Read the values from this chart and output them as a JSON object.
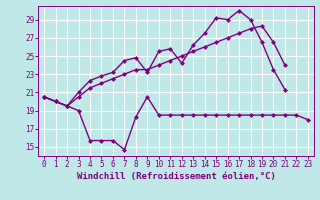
{
  "xlabel": "Windchill (Refroidissement éolien,°C)",
  "bg_color": "#c0e8e8",
  "grid_color": "#ffffff",
  "line_color": "#800080",
  "ylim": [
    14.0,
    30.5
  ],
  "xlim": [
    -0.5,
    23.5
  ],
  "yticks": [
    15,
    17,
    19,
    21,
    23,
    25,
    27,
    29
  ],
  "xticks": [
    0,
    1,
    2,
    3,
    4,
    5,
    6,
    7,
    8,
    9,
    10,
    11,
    12,
    13,
    14,
    15,
    16,
    17,
    18,
    19,
    20,
    21,
    22,
    23
  ],
  "line1_x": [
    0,
    1,
    2,
    3,
    4,
    5,
    6,
    7,
    8,
    9,
    10,
    11,
    12,
    13,
    14,
    15,
    16,
    17,
    18,
    19,
    20,
    21,
    22,
    23
  ],
  "line1_y": [
    20.5,
    20.0,
    19.5,
    19.0,
    15.7,
    15.7,
    15.7,
    14.7,
    18.3,
    20.5,
    18.5,
    18.5,
    18.5,
    18.5,
    18.5,
    18.5,
    18.5,
    18.5,
    18.5,
    18.5,
    18.5,
    18.5,
    18.5,
    18.0
  ],
  "line2_x": [
    0,
    1,
    2,
    3,
    4,
    5,
    6,
    7,
    8,
    9,
    10,
    11,
    12,
    13,
    14,
    15,
    16,
    17,
    18,
    19,
    20,
    21
  ],
  "line2_y": [
    20.5,
    20.0,
    19.5,
    21.0,
    22.3,
    22.8,
    23.2,
    24.5,
    24.8,
    23.2,
    25.5,
    25.8,
    24.2,
    26.2,
    27.5,
    29.2,
    29.0,
    30.0,
    29.0,
    26.5,
    23.5,
    21.3
  ],
  "line3_x": [
    0,
    1,
    2,
    3,
    4,
    5,
    6,
    7,
    8,
    9,
    10,
    11,
    12,
    13,
    14,
    15,
    16,
    17,
    18,
    19,
    20,
    21
  ],
  "line3_y": [
    20.5,
    20.0,
    19.5,
    20.5,
    21.5,
    22.0,
    22.5,
    23.0,
    23.5,
    23.5,
    24.0,
    24.5,
    25.0,
    25.5,
    26.0,
    26.5,
    27.0,
    27.5,
    28.0,
    28.3,
    26.5,
    24.0
  ],
  "marker": "D",
  "markersize": 2.5,
  "linewidth": 1.0,
  "tick_fontsize": 5.5,
  "label_fontsize": 6.5
}
